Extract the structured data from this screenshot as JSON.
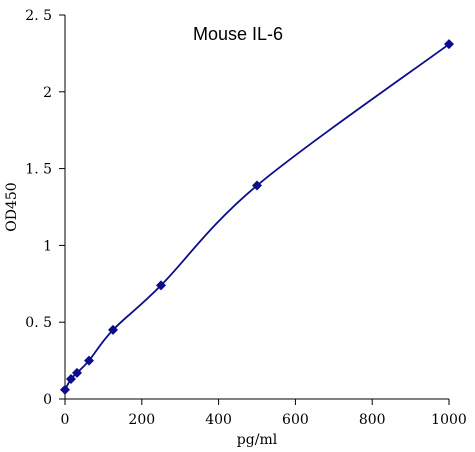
{
  "chart_data": {
    "type": "line",
    "title": "Mouse IL-6",
    "xlabel": "pg/ml",
    "ylabel": "OD450",
    "xlim": [
      0,
      1000
    ],
    "ylim": [
      0,
      2.5
    ],
    "xticks": [
      0,
      200,
      400,
      600,
      800,
      1000
    ],
    "xtick_labels": [
      "0",
      "200",
      "400",
      "600",
      "800",
      "1000"
    ],
    "yticks": [
      0,
      0.5,
      1,
      1.5,
      2,
      2.5
    ],
    "ytick_labels": [
      "0",
      "0. 5",
      "1",
      "1. 5",
      "2",
      "2. 5"
    ],
    "grid": false,
    "legend": false,
    "line_style": "smooth",
    "marker": "diamond",
    "color": "#0d0d8a",
    "series": [
      {
        "x": [
          0,
          15.6,
          31.25,
          62.5,
          125,
          250,
          500,
          1000
        ],
        "y": [
          0.06,
          0.13,
          0.17,
          0.25,
          0.45,
          0.74,
          1.39,
          2.31
        ]
      }
    ]
  }
}
